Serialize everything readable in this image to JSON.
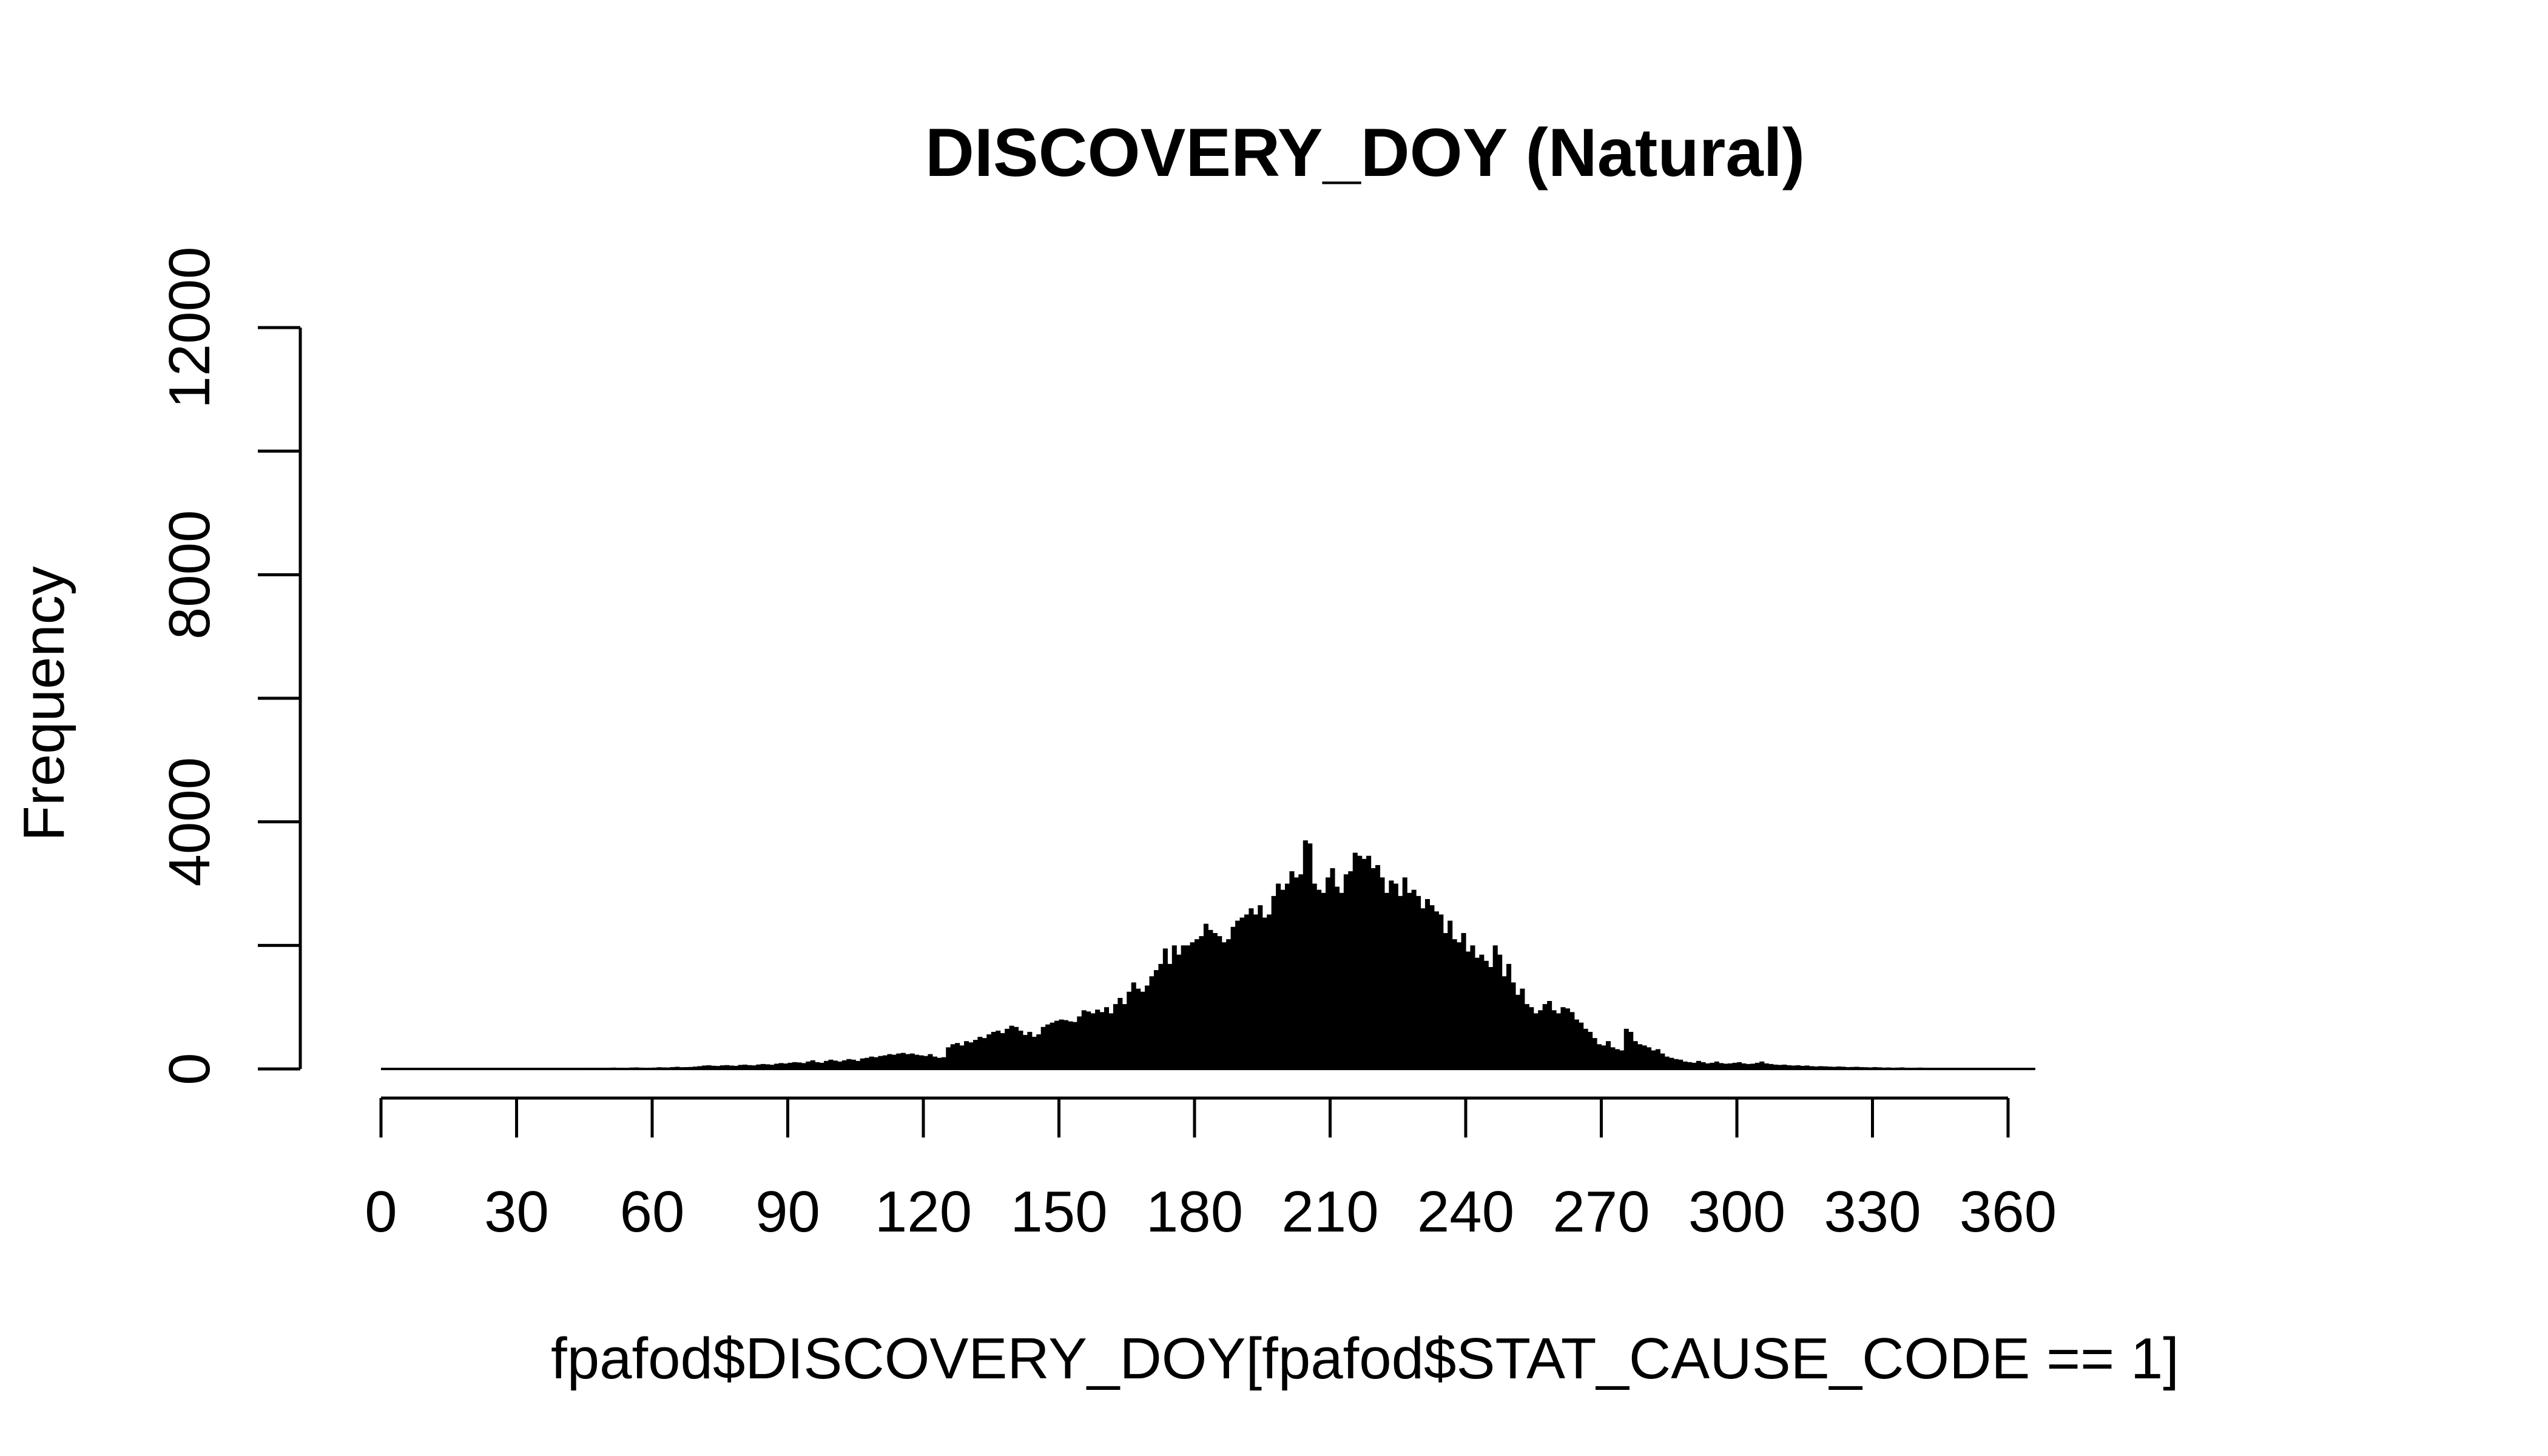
{
  "chart_data": {
    "type": "bar",
    "title": "DISCOVERY_DOY (Natural)",
    "xlabel": "fpafod$DISCOVERY_DOY[fpafod$STAT_CAUSE_CODE == 1]",
    "ylabel": "Frequency",
    "xlim": [
      0,
      366
    ],
    "ylim": [
      0,
      12000
    ],
    "x_ticks": [
      0,
      30,
      60,
      90,
      120,
      150,
      180,
      210,
      240,
      270,
      300,
      330,
      360
    ],
    "y_ticks": [
      0,
      2000,
      4000,
      6000,
      8000,
      10000,
      12000
    ],
    "y_tick_labels": [
      "0",
      "",
      "4000",
      "",
      "8000",
      "",
      "12000"
    ],
    "bin_width": 1,
    "color": "#000000",
    "series": [
      {
        "bin_start": 0,
        "values": [
          10,
          12,
          8,
          15,
          10,
          9,
          14,
          12,
          10,
          8,
          11,
          13,
          9,
          10,
          12,
          15,
          11,
          9,
          10,
          12,
          14,
          13,
          11,
          9,
          15,
          17,
          12,
          10,
          11,
          14,
          12,
          13,
          11,
          10,
          14,
          16,
          12,
          13,
          11,
          15,
          18,
          14,
          13,
          16,
          15,
          17,
          20,
          16,
          14,
          15,
          20,
          22,
          18,
          15,
          17,
          23,
          25,
          21,
          19,
          20,
          22,
          28,
          25,
          24,
          30,
          35,
          28,
          30,
          32,
          38,
          45,
          55,
          60,
          52,
          48,
          58,
          62,
          55,
          50,
          65,
          70,
          62,
          58,
          72,
          80,
          75,
          68,
          85,
          95,
          88,
          100,
          110,
          105,
          95,
          120,
          140,
          110,
          100,
          130,
          150,
          135,
          120,
          140,
          160,
          150,
          130,
          170,
          180,
          200,
          190,
          210,
          220,
          240,
          230,
          250,
          260,
          240,
          250,
          230,
          220,
          210,
          240,
          200,
          180,
          190,
          350,
          400,
          420,
          380,
          450,
          430,
          470,
          520,
          500,
          560,
          600,
          620,
          580,
          650,
          700,
          680,
          620,
          550,
          600,
          520,
          560,
          680,
          720,
          750,
          780,
          800,
          790,
          770,
          760,
          850,
          950,
          930,
          900,
          960,
          920,
          1000,
          900,
          1050,
          1150,
          1050,
          1250,
          1400,
          1300,
          1250,
          1350,
          1500,
          1600,
          1700,
          1950,
          1700,
          2000,
          1850,
          2000,
          2000,
          2050,
          2100,
          2150,
          2350,
          2250,
          2200,
          2150,
          2050,
          2100,
          2300,
          2400,
          2450,
          2500,
          2600,
          2500,
          2650,
          2450,
          2500,
          2800,
          3000,
          2900,
          3000,
          3200,
          3100,
          3150,
          3700,
          3650,
          3000,
          2900,
          2850,
          3100,
          3250,
          2950,
          2850,
          3150,
          3200,
          3500,
          3450,
          3400,
          3450,
          3250,
          3300,
          3100,
          2850,
          3050,
          3000,
          2800,
          3100,
          2850,
          2900,
          2800,
          2600,
          2750,
          2650,
          2550,
          2500,
          2200,
          2400,
          2100,
          2050,
          2200,
          1900,
          2000,
          1800,
          1850,
          1750,
          1650,
          2000,
          1850,
          1500,
          1700,
          1400,
          1200,
          1300,
          1050,
          1000,
          900,
          950,
          1050,
          1100,
          950,
          900,
          1000,
          980,
          920,
          800,
          750,
          650,
          600,
          500,
          400,
          380,
          450,
          350,
          320,
          300,
          650,
          600,
          450,
          400,
          380,
          350,
          300,
          320,
          250,
          200,
          180,
          160,
          150,
          120,
          110,
          100,
          130,
          110,
          90,
          100,
          120,
          95,
          85,
          90,
          100,
          110,
          90,
          80,
          85,
          100,
          120,
          90,
          80,
          70,
          65,
          70,
          60,
          55,
          60,
          50,
          55,
          45,
          40,
          45,
          42,
          38,
          35,
          40,
          36,
          30,
          32,
          35,
          30,
          28,
          25,
          30,
          26,
          22,
          24,
          20,
          22,
          25,
          20,
          18,
          20,
          22,
          18,
          16,
          15,
          18,
          16,
          14,
          15,
          12,
          14,
          12,
          11,
          10,
          12,
          11,
          10,
          9,
          10,
          12,
          11,
          10,
          9,
          8,
          10,
          9,
          8
        ]
      }
    ]
  }
}
